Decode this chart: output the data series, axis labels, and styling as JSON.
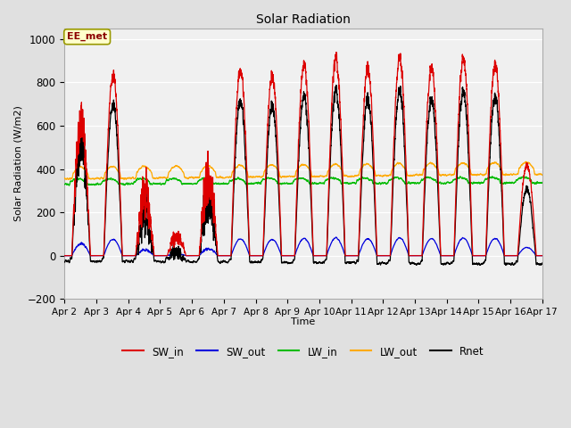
{
  "title": "Solar Radiation",
  "ylabel": "Solar Radiation (W/m2)",
  "xlabel": "Time",
  "ylim": [
    -200,
    1050
  ],
  "yticks": [
    -200,
    0,
    200,
    400,
    600,
    800,
    1000
  ],
  "x_tick_labels": [
    "Apr 2",
    "Apr 3",
    "Apr 4",
    "Apr 5",
    "Apr 6",
    "Apr 7",
    "Apr 8",
    "Apr 9",
    "Apr 10",
    "Apr 11",
    "Apr 12",
    "Apr 13",
    "Apr 14",
    "Apr 15",
    "Apr 16",
    "Apr 17"
  ],
  "fig_bg_color": "#e0e0e0",
  "plot_bg_color": "#f0f0f0",
  "grid_color": "#ffffff",
  "annotation_text": "EE_met",
  "annotation_box_color": "#ffffcc",
  "annotation_border_color": "#999900",
  "colors": {
    "SW_in": "#dd0000",
    "SW_out": "#0000dd",
    "LW_in": "#00bb00",
    "LW_out": "#ffaa00",
    "Rnet": "#000000"
  },
  "n_days": 15,
  "n_per_day": 288,
  "peak_heights": [
    760,
    880,
    470,
    250,
    540,
    900,
    870,
    930,
    960,
    910,
    960,
    910,
    960,
    930,
    440
  ],
  "lw_in_base": 340,
  "lw_out_base": 375
}
